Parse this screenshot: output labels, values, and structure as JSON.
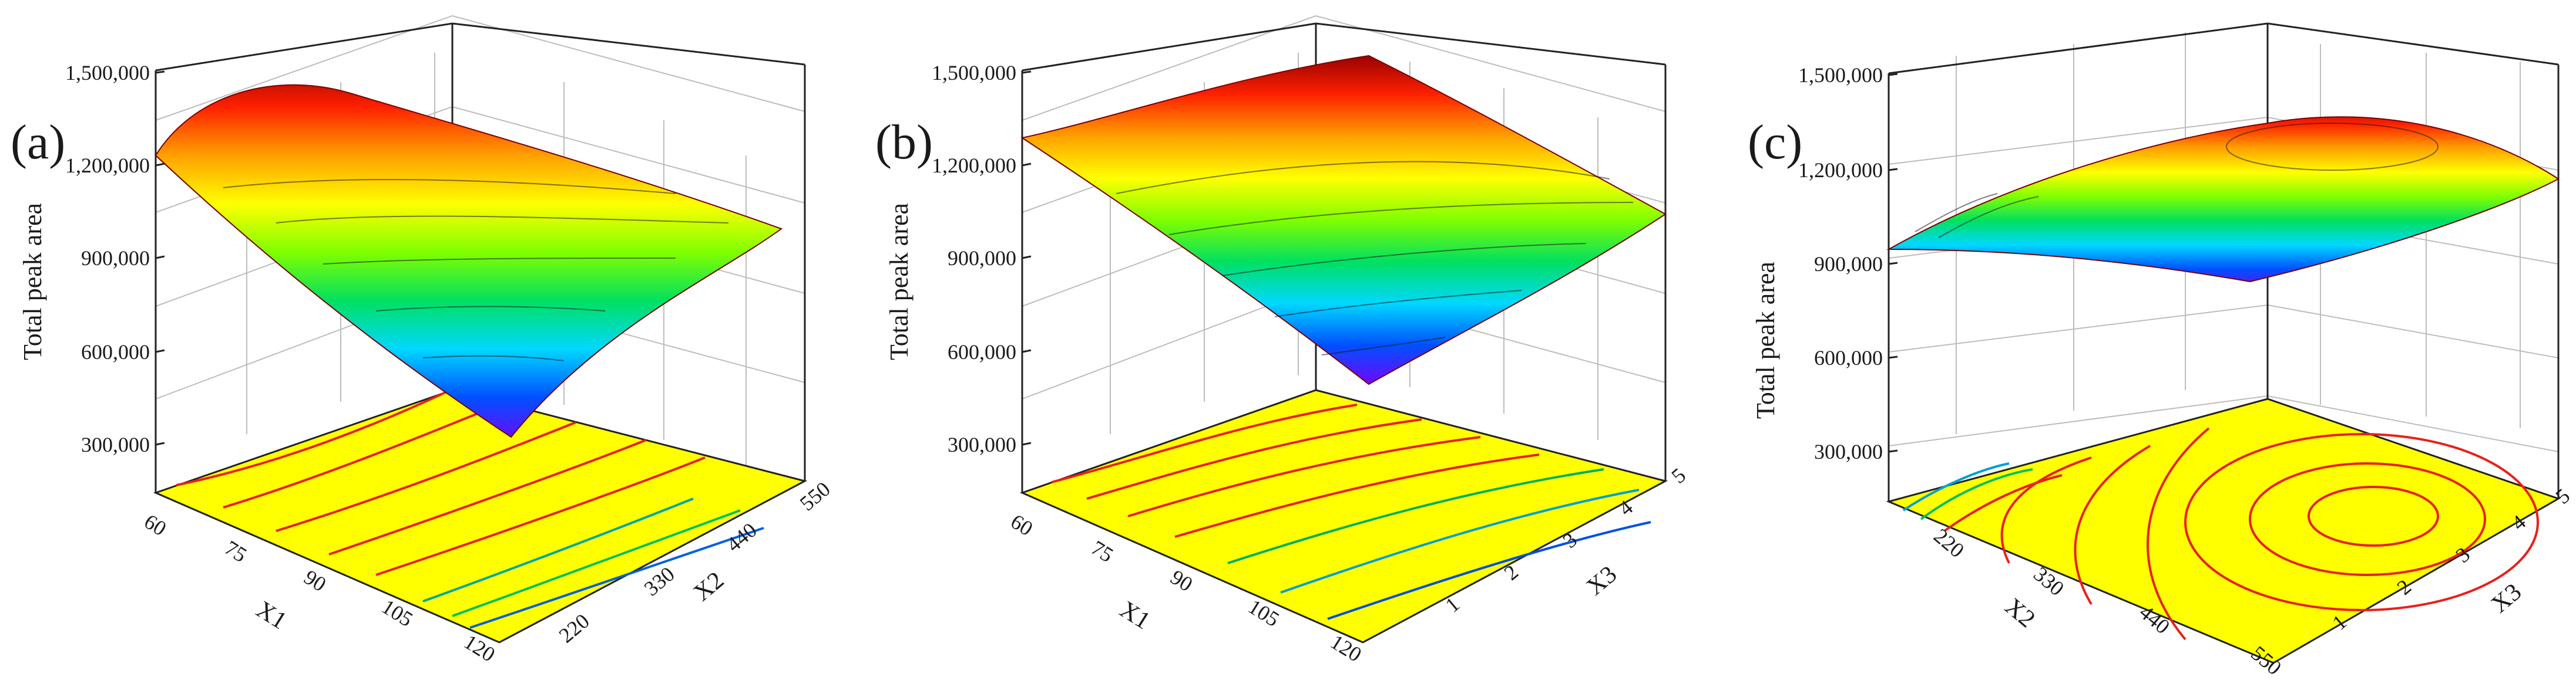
{
  "colors": {
    "background": "#ffffff",
    "floor": "#ffff00",
    "gridline": "#bdbdbd",
    "frame": "#222222",
    "surface_scale": [
      "#7a00ff",
      "#0050ff",
      "#00d8ff",
      "#00e060",
      "#80ff00",
      "#ffff00",
      "#ffa000",
      "#ff2000",
      "#900000"
    ],
    "contour_high": "#e8201a",
    "contour_low": "#00a0b0"
  },
  "chart_data": [
    {
      "type": "surface3d",
      "panel_label": "(a)",
      "zlabel": "Total peak area",
      "xlabel": "X1",
      "ylabel": "X2",
      "x_ticks": [
        "60",
        "75",
        "90",
        "105",
        "120"
      ],
      "y_ticks": [
        "220",
        "330",
        "440",
        "550"
      ],
      "z_ticks": [
        "300,000",
        "600,000",
        "900,000",
        "1,200,000",
        "1,500,000"
      ],
      "xlim": [
        60,
        120
      ],
      "ylim": [
        110,
        550
      ],
      "zlim": [
        0,
        1500000
      ],
      "grid": true,
      "surface": {
        "x": [
          60,
          75,
          90,
          105,
          120
        ],
        "y": [
          110,
          220,
          330,
          440,
          550
        ],
        "z": [
          [
            1250000,
            1390000,
            1450000,
            1420000,
            1300000
          ],
          [
            1200000,
            1360000,
            1430000,
            1400000,
            1270000
          ],
          [
            1080000,
            1240000,
            1310000,
            1290000,
            1160000
          ],
          [
            850000,
            1010000,
            1090000,
            1070000,
            950000
          ],
          [
            430000,
            660000,
            800000,
            840000,
            760000
          ]
        ]
      }
    },
    {
      "type": "surface3d",
      "panel_label": "(b)",
      "zlabel": "Total peak area",
      "xlabel": "X1",
      "ylabel": "X3",
      "x_ticks": [
        "60",
        "75",
        "90",
        "105",
        "120"
      ],
      "y_ticks": [
        "1",
        "2",
        "3",
        "4",
        "5"
      ],
      "z_ticks": [
        "300,000",
        "600,000",
        "900,000",
        "1,200,000",
        "1,500,000"
      ],
      "xlim": [
        60,
        120
      ],
      "ylim": [
        1,
        5
      ],
      "zlim": [
        0,
        1500000
      ],
      "grid": true,
      "surface": {
        "x": [
          60,
          75,
          90,
          105,
          120
        ],
        "y": [
          1,
          2,
          3,
          4,
          5
        ],
        "z": [
          [
            1300000,
            1360000,
            1410000,
            1440000,
            1470000
          ],
          [
            1240000,
            1300000,
            1340000,
            1370000,
            1390000
          ],
          [
            1130000,
            1180000,
            1220000,
            1240000,
            1250000
          ],
          [
            930000,
            980000,
            1020000,
            1040000,
            1060000
          ],
          [
            560000,
            650000,
            730000,
            800000,
            860000
          ]
        ]
      }
    },
    {
      "type": "surface3d",
      "panel_label": "(c)",
      "zlabel": "Total peak area",
      "xlabel": "X2",
      "ylabel": "X3",
      "x_ticks": [
        "220",
        "330",
        "440",
        "550"
      ],
      "y_ticks": [
        "1",
        "2",
        "3",
        "4",
        "5"
      ],
      "z_ticks": [
        "300,000",
        "600,000",
        "900,000",
        "1,200,000",
        "1,500,000"
      ],
      "xlim": [
        110,
        550
      ],
      "ylim": [
        1,
        5
      ],
      "zlim": [
        0,
        1500000
      ],
      "grid": true,
      "surface": {
        "x": [
          110,
          220,
          330,
          440,
          550
        ],
        "y": [
          1,
          2,
          3,
          4,
          5
        ],
        "z": [
          [
            950000,
            1010000,
            1060000,
            1110000,
            1170000
          ],
          [
            1100000,
            1190000,
            1250000,
            1280000,
            1290000
          ],
          [
            1180000,
            1290000,
            1350000,
            1370000,
            1350000
          ],
          [
            1120000,
            1250000,
            1320000,
            1330000,
            1290000
          ],
          [
            900000,
            1040000,
            1130000,
            1160000,
            1150000
          ]
        ]
      }
    }
  ]
}
